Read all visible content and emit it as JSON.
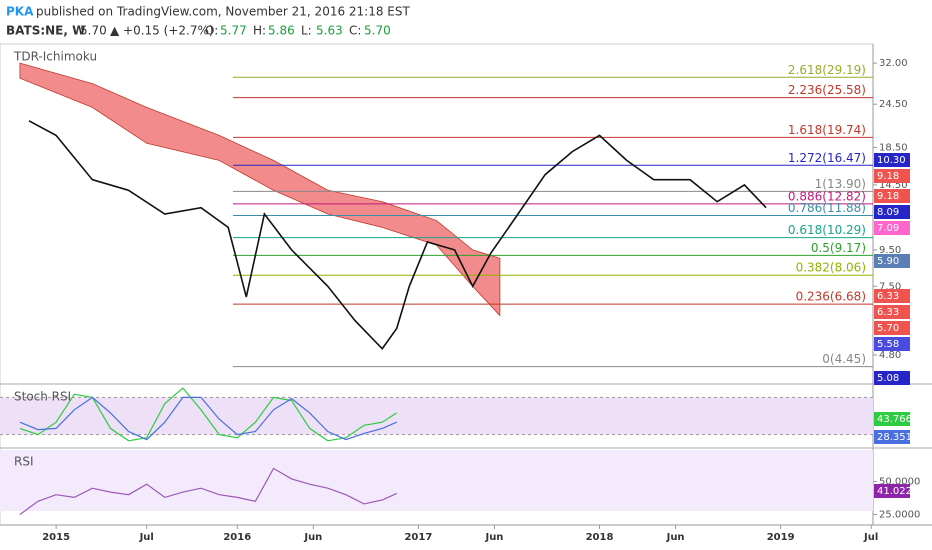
{
  "header": {
    "user": "PKA",
    "published": "published on TradingView.com, November 21, 2016 21:18 EST",
    "symbol": "BATS:NE, W",
    "last": "5.70",
    "change": "▲ +0.15 (+2.7%)",
    "ohlc": [
      {
        "label": "O:",
        "value": "5.77"
      },
      {
        "label": "H:",
        "value": "5.86"
      },
      {
        "label": "L:",
        "value": "5.63"
      },
      {
        "label": "C:",
        "value": "5.70"
      }
    ]
  },
  "chart_data": [
    {
      "type": "line",
      "title": "TDR-Ichimoku",
      "log": true,
      "color": "#111111",
      "x": [
        2014.85,
        2015.0,
        2015.2,
        2015.4,
        2015.6,
        2015.8,
        2015.95,
        2016.05,
        2016.15,
        2016.3,
        2016.5,
        2016.65,
        2016.8,
        2016.88,
        2016.95,
        2017.05,
        2017.2,
        2017.3,
        2017.4,
        2017.55,
        2017.7,
        2017.85,
        2018.0,
        2018.15,
        2018.3,
        2018.5,
        2018.65,
        2018.8,
        2018.92
      ],
      "values": [
        22,
        20,
        15,
        14,
        12,
        12.5,
        11,
        7,
        12,
        9.5,
        7.5,
        6,
        5,
        5.7,
        7.5,
        10,
        9.5,
        7.5,
        9.3,
        12,
        15.5,
        18,
        20,
        17,
        15,
        15,
        13,
        14.5,
        12.5
      ],
      "cloud": {
        "color": "#f28b8b",
        "x": [
          2014.8,
          2015.2,
          2015.5,
          2015.9,
          2016.2,
          2016.5,
          2016.8,
          2017.1,
          2017.3,
          2017.45
        ],
        "upper": [
          32,
          28,
          24,
          20,
          17,
          14,
          13,
          11.5,
          9.5,
          9
        ],
        "lower": [
          29,
          24,
          19,
          17,
          14,
          12,
          11,
          9.8,
          7.5,
          6.2
        ]
      },
      "levels": [
        {
          "label": "2.618(29.19)",
          "value": 29.19,
          "color": "#9aaa2a"
        },
        {
          "label": "2.236(25.58)",
          "value": 25.58,
          "color": "#c0392b"
        },
        {
          "label": "1.618(19.74)",
          "value": 19.74,
          "color": "#c0392b"
        },
        {
          "label": "1.272(16.47)",
          "value": 16.47,
          "color": "#2626c8"
        },
        {
          "label": "1(13.90)",
          "value": 13.9,
          "color": "#888888"
        },
        {
          "label": "0.886(12.82)",
          "value": 12.82,
          "color": "#c2187f"
        },
        {
          "label": "0.786(11.88)",
          "value": 11.88,
          "color": "#3a8fa8"
        },
        {
          "label": "0.618(10.29)",
          "value": 10.29,
          "color": "#17a589"
        },
        {
          "label": "0.5(9.17)",
          "value": 9.17,
          "color": "#2ca02c"
        },
        {
          "label": "0.382(8.06)",
          "value": 8.06,
          "color": "#8db600"
        },
        {
          "label": "0.236(6.68)",
          "value": 6.68,
          "color": "#c0392b"
        },
        {
          "label": "0(4.45)",
          "value": 4.45,
          "color": "#888888"
        }
      ],
      "price_labels": [
        {
          "label": "10.30",
          "color": "#2626c8"
        },
        {
          "label": "9.18",
          "color": "#ef5350"
        },
        {
          "label": "9.18",
          "color": "#ef5350"
        },
        {
          "label": "8.09",
          "color": "#2626c8"
        },
        {
          "label": "7.09",
          "color": "#ff66cc"
        },
        {
          "label": "5.90",
          "color": "#5b7fb5"
        },
        {
          "label": "6.33",
          "color": "#ef5350"
        },
        {
          "label": "6.33",
          "color": "#ef5350"
        },
        {
          "label": "5.70",
          "color": "#ef5350"
        },
        {
          "label": "5.58",
          "color": "#4a4ae0"
        },
        {
          "label": "5.08",
          "color": "#2626c8"
        }
      ],
      "ylim": [
        4.0,
        36.0
      ],
      "yticks": [
        {
          "value": 32,
          "label": "32.00"
        },
        {
          "value": 24.5,
          "label": "24.50"
        },
        {
          "value": 18.5,
          "label": "18.50"
        },
        {
          "value": 14.5,
          "label": "14.50"
        },
        {
          "value": 9.5,
          "label": "9.50"
        },
        {
          "value": 7.5,
          "label": "7.50"
        },
        {
          "value": 4.8,
          "label": "4.80"
        }
      ],
      "xlim": [
        2014.69,
        2019.51
      ],
      "xticks": [
        {
          "value": 2015,
          "label": "2015"
        },
        {
          "value": 2015.5,
          "label": "Jul"
        },
        {
          "value": 2016,
          "label": "2016"
        },
        {
          "value": 2016.42,
          "label": "Jun"
        },
        {
          "value": 2017,
          "label": "2017"
        },
        {
          "value": 2017.42,
          "label": "Jun"
        },
        {
          "value": 2018,
          "label": "2018"
        },
        {
          "value": 2018.42,
          "label": "Jun"
        },
        {
          "value": 2019,
          "label": "2019"
        },
        {
          "value": 2019.5,
          "label": "Jul"
        }
      ]
    },
    {
      "type": "line",
      "title": "Stoch RSI",
      "ylim": [
        0,
        100
      ],
      "bands": [
        20,
        80
      ],
      "x": [
        2014.8,
        2014.9,
        2015.0,
        2015.1,
        2015.2,
        2015.3,
        2015.4,
        2015.5,
        2015.6,
        2015.7,
        2015.8,
        2015.9,
        2016.0,
        2016.1,
        2016.2,
        2016.3,
        2016.4,
        2016.5,
        2016.6,
        2016.7,
        2016.8,
        2016.88
      ],
      "series": [
        {
          "color": "#2ecc40",
          "values": [
            30,
            20,
            40,
            85,
            80,
            30,
            10,
            15,
            70,
            95,
            60,
            20,
            15,
            40,
            80,
            75,
            30,
            10,
            15,
            35,
            40,
            55
          ]
        },
        {
          "color": "#4a6fe0",
          "values": [
            40,
            28,
            30,
            60,
            80,
            55,
            25,
            12,
            40,
            80,
            80,
            45,
            20,
            25,
            60,
            78,
            55,
            25,
            12,
            22,
            30,
            40
          ]
        }
      ],
      "price_labels": [
        {
          "label": "43.7666",
          "color": "#2ecc40"
        },
        {
          "label": "28.3511",
          "color": "#4a6fe0"
        }
      ]
    },
    {
      "type": "line",
      "title": "RSI",
      "ylim": [
        17,
        74
      ],
      "yticks": [
        {
          "value": 50,
          "label": "50.0000"
        },
        {
          "value": 25,
          "label": "25.0000"
        }
      ],
      "x": [
        2014.8,
        2014.9,
        2015.0,
        2015.1,
        2015.2,
        2015.3,
        2015.4,
        2015.5,
        2015.6,
        2015.7,
        2015.8,
        2015.9,
        2016.0,
        2016.1,
        2016.2,
        2016.3,
        2016.4,
        2016.5,
        2016.6,
        2016.7,
        2016.8,
        2016.88
      ],
      "series": [
        {
          "color": "#9b59b6",
          "values": [
            25,
            35,
            40,
            38,
            45,
            42,
            40,
            48,
            38,
            42,
            45,
            40,
            38,
            35,
            60,
            52,
            48,
            45,
            40,
            33,
            36,
            41
          ]
        }
      ],
      "price_labels": [
        {
          "label": "41.0227",
          "color": "#8e24aa"
        }
      ]
    }
  ]
}
